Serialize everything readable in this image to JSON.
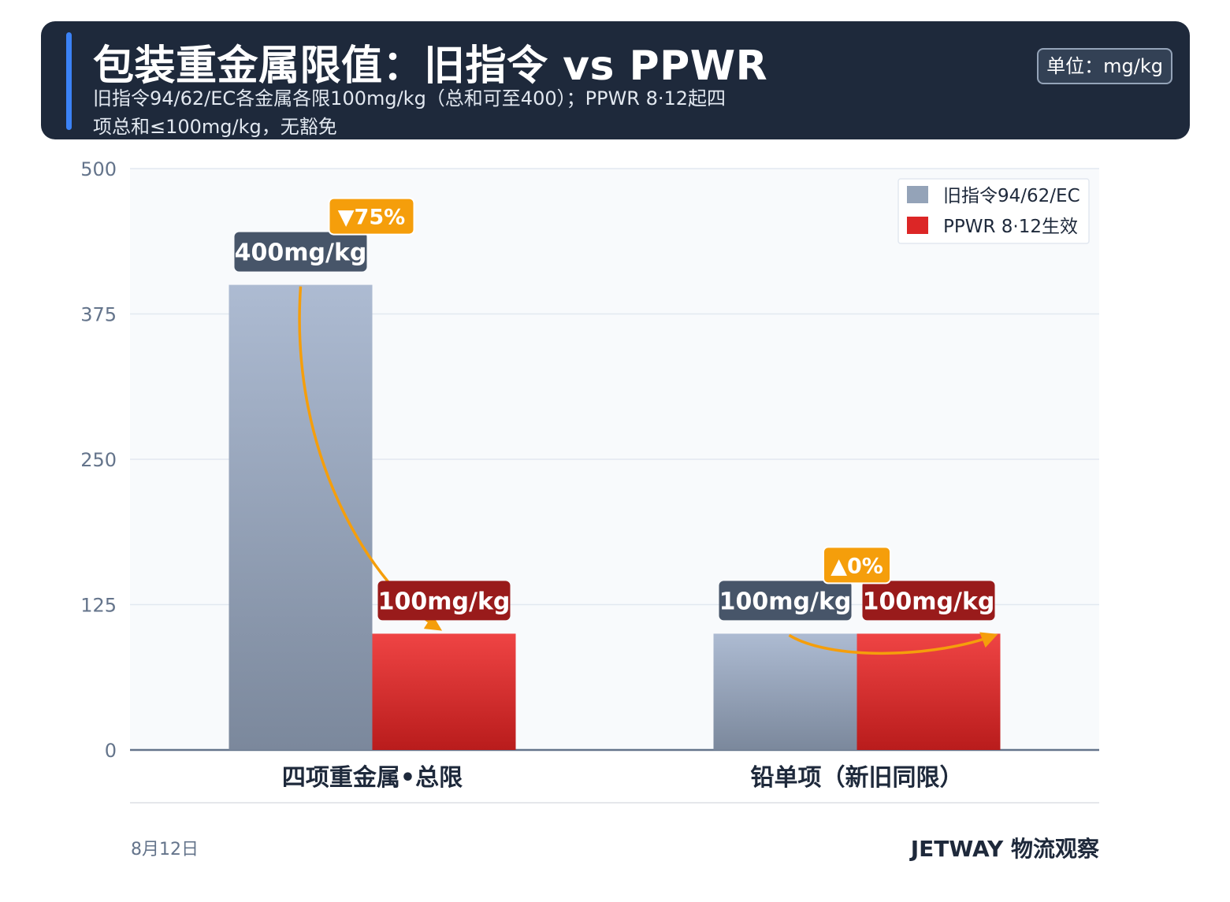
{
  "header": {
    "title": "包装重金属限值：旧指令 vs PPWR",
    "subtitle": "旧指令94/62/EC各金属各限100mg/kg（总和可至400）；PPWR 8·12起四项总和≤100mg/kg，无豁免",
    "unit": "单位：mg/kg"
  },
  "chart_data": {
    "type": "bar",
    "categories": [
      "四项重金属•总限",
      "铅单项（新旧同限）"
    ],
    "series": [
      {
        "name": "旧指令94/62/EC",
        "values": [
          400,
          100
        ],
        "labels": [
          "400mg/kg",
          "100mg/kg"
        ],
        "color": "#94a3b8"
      },
      {
        "name": "PPWR 8·12生效",
        "values": [
          100,
          100
        ],
        "labels": [
          "100mg/kg",
          "100mg/kg"
        ],
        "color": "#dc2626"
      }
    ],
    "changes": [
      "▼75%",
      "▲0%"
    ],
    "ylim": [
      0,
      500
    ],
    "yticks": [
      0,
      125,
      250,
      375,
      500
    ],
    "grid": true,
    "legend_position": "top-right"
  },
  "colors": {
    "header_bg": "#1e293b",
    "accent": "#3b82f6",
    "old_label_bg": "#475569",
    "new_label_bg": "#991b1b",
    "change_badge": "#f59e0b"
  },
  "footer": {
    "date": "8月12日",
    "brand": "JETWAY 物流观察"
  }
}
